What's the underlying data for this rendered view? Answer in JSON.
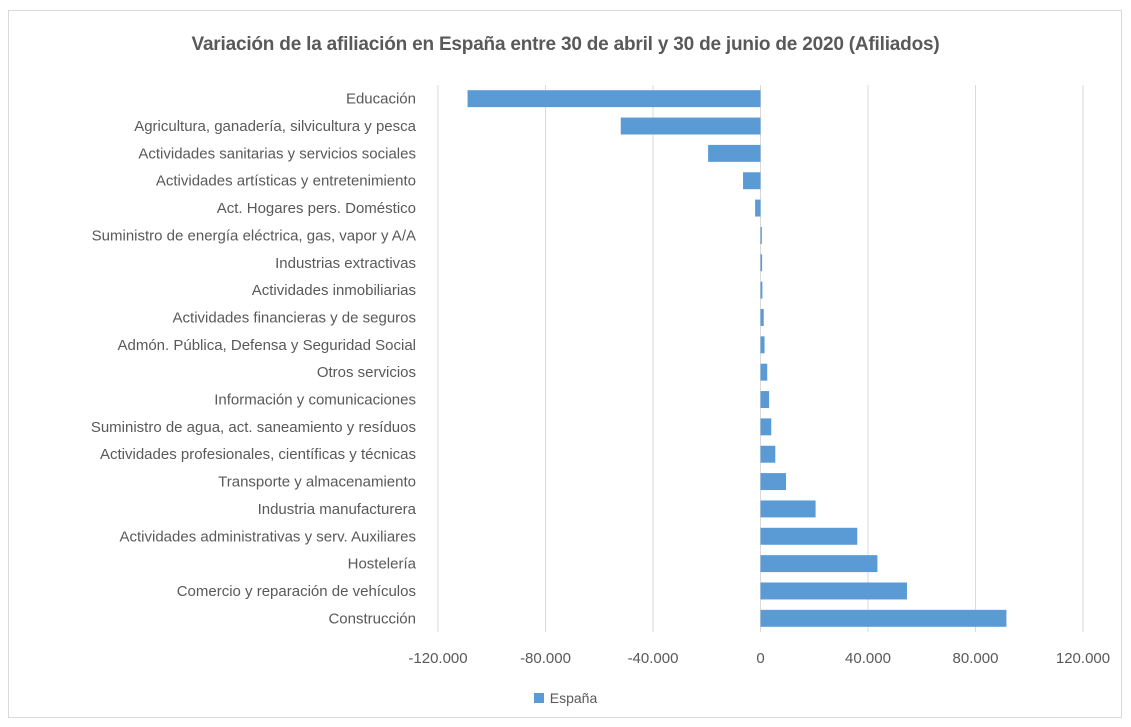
{
  "chart_data": {
    "type": "bar",
    "orientation": "horizontal",
    "title": "Variación de la afiliación en España entre 30 de abril y 30 de junio de 2020 (Afiliados)",
    "xlabel": "",
    "ylabel": "",
    "xlim": [
      -120000,
      120000
    ],
    "xticks": [
      -120000,
      -80000,
      -40000,
      0,
      40000,
      80000,
      120000
    ],
    "xtick_labels": [
      "-120.000",
      "-80.000",
      "-40.000",
      "0",
      "40.000",
      "80.000",
      "120.000"
    ],
    "grid": true,
    "legend_position": "bottom",
    "categories": [
      "Educación",
      "Agricultura, ganadería, silvicultura y pesca",
      "Actividades sanitarias y servicios sociales",
      "Actividades artísticas y entretenimiento",
      "Act. Hogares pers. Doméstico",
      "Suministro de energía eléctrica, gas, vapor y A/A",
      "Industrias extractivas",
      "Actividades inmobiliarias",
      "Actividades financieras y de seguros",
      "Admón. Pública, Defensa y Seguridad Social",
      "Otros servicios",
      "Información y comunicaciones",
      "Suministro de agua, act. saneamiento y resíduos",
      "Actividades profesionales, científicas y técnicas",
      "Transporte y almacenamiento",
      "Industria manufacturera",
      "Actividades administrativas y serv. Auxiliares",
      "Hostelería",
      "Comercio y reparación de vehículos",
      "Construcción"
    ],
    "series": [
      {
        "name": "España",
        "color": "#5b9bd5",
        "values": [
          -109000,
          -52000,
          -19500,
          -6500,
          -2000,
          500,
          600,
          700,
          1200,
          1500,
          2500,
          3200,
          4000,
          5500,
          9500,
          20500,
          36000,
          43500,
          54500,
          91500
        ]
      }
    ]
  }
}
